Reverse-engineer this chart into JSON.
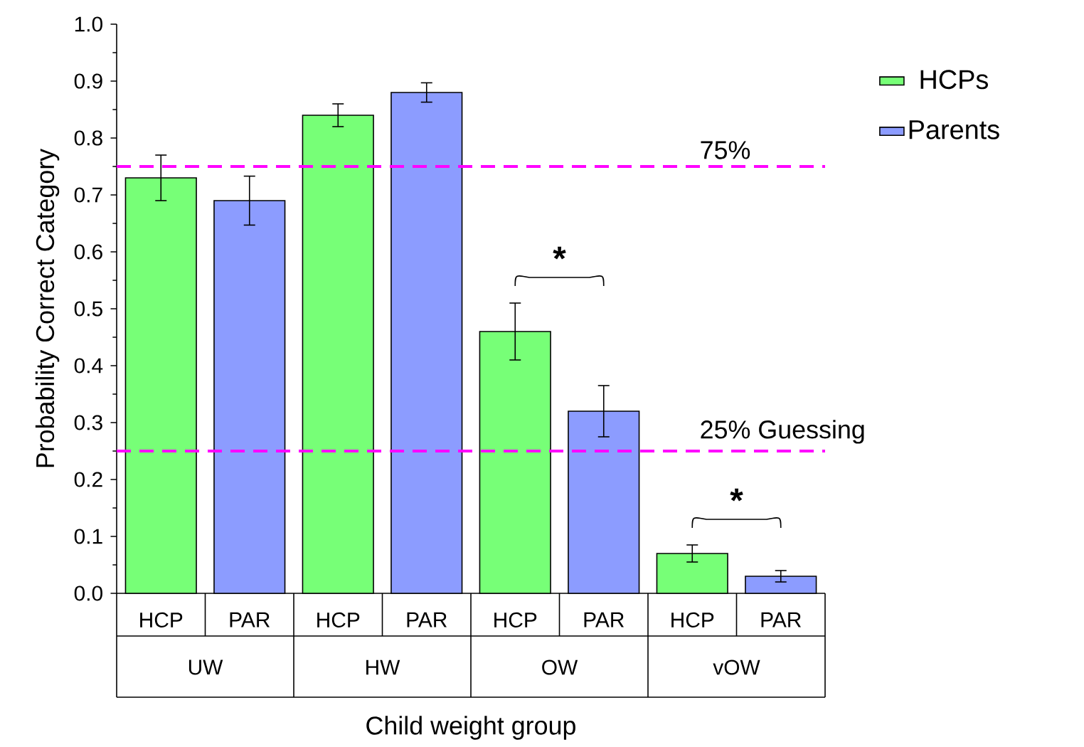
{
  "chart_data": {
    "type": "bar",
    "xlabel": "Child weight group",
    "ylabel": "Probability Correct Category",
    "categories": [
      "HCP",
      "PAR",
      "HCP",
      "PAR",
      "HCP",
      "PAR",
      "HCP",
      "PAR"
    ],
    "series": [
      {
        "name": "HCPs",
        "color": "#77ff77",
        "values": [
          0.73,
          null,
          0.84,
          null,
          0.46,
          null,
          0.07,
          null
        ],
        "errors": [
          0.04,
          null,
          0.02,
          null,
          0.05,
          null,
          0.015,
          null
        ]
      },
      {
        "name": "Parents",
        "color": "#8c9cff",
        "values": [
          null,
          0.69,
          null,
          0.88,
          null,
          0.32,
          null,
          0.03
        ],
        "errors": [
          null,
          0.043,
          null,
          0.017,
          null,
          0.045,
          null,
          0.01
        ]
      }
    ],
    "ylim": [
      0,
      1
    ],
    "yticks": [
      {
        "value": 0,
        "label": "0.0"
      },
      {
        "value": 0.1,
        "label": "0.1"
      },
      {
        "value": 0.2,
        "label": "0.2"
      },
      {
        "value": 0.3,
        "label": "0.3"
      },
      {
        "value": 0.4,
        "label": "0.4"
      },
      {
        "value": 0.5,
        "label": "0.5"
      },
      {
        "value": 0.6,
        "label": "0.6"
      },
      {
        "value": 0.7,
        "label": "0.7"
      },
      {
        "value": 0.8,
        "label": "0.8"
      },
      {
        "value": 0.9,
        "label": "0.9"
      },
      {
        "value": 1,
        "label": "1.0"
      }
    ],
    "ref_lines": [
      {
        "axis": "y",
        "value": 0.75,
        "label": "75%",
        "color": "#ff00ff",
        "line_style": "dashed"
      },
      {
        "axis": "y",
        "value": 0.25,
        "label": "25% Guessing",
        "color": "#ff00ff",
        "line_style": "dashed"
      }
    ],
    "annotations": [
      "UW",
      "HW",
      "OW",
      "vOW",
      "*",
      "*"
    ],
    "legend": "right"
  }
}
